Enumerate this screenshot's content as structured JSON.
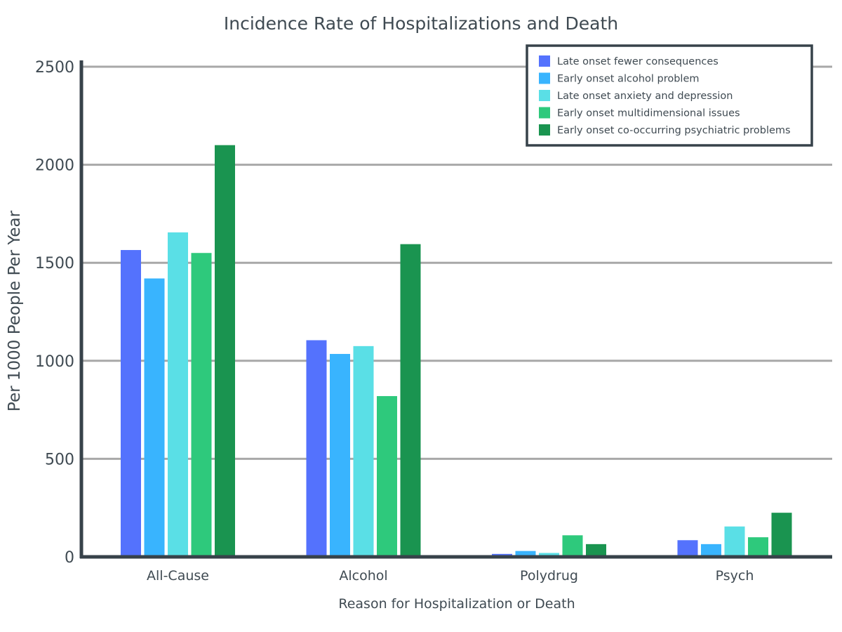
{
  "chart_data": {
    "type": "bar",
    "title": "Incidence Rate of Hospitalizations and Death",
    "xlabel": "Reason for Hospitalization or Death",
    "ylabel": "Per 1000 People Per Year",
    "categories": [
      "All-Cause",
      "Alcohol",
      "Polydrug",
      "Psych"
    ],
    "ylim": [
      0,
      2500
    ],
    "yticks": [
      "0",
      "500",
      "1000",
      "1500",
      "2000",
      "2500"
    ],
    "grid": true,
    "legend_position": "top-right",
    "series": [
      {
        "name": "Late onset fewer consequences",
        "color": "#5472fd",
        "values": [
          1565,
          1105,
          15,
          85
        ]
      },
      {
        "name": "Early onset alcohol problem",
        "color": "#39b4fe",
        "values": [
          1420,
          1035,
          30,
          65
        ]
      },
      {
        "name": "Late onset anxiety and depression",
        "color": "#5adfe6",
        "values": [
          1655,
          1075,
          20,
          155
        ]
      },
      {
        "name": "Early onset multidimensional issues",
        "color": "#2ec97c",
        "values": [
          1550,
          820,
          110,
          100
        ]
      },
      {
        "name": "Early onset co-occurring psychiatric problems",
        "color": "#1a9450",
        "values": [
          2100,
          1595,
          65,
          225
        ]
      }
    ]
  }
}
